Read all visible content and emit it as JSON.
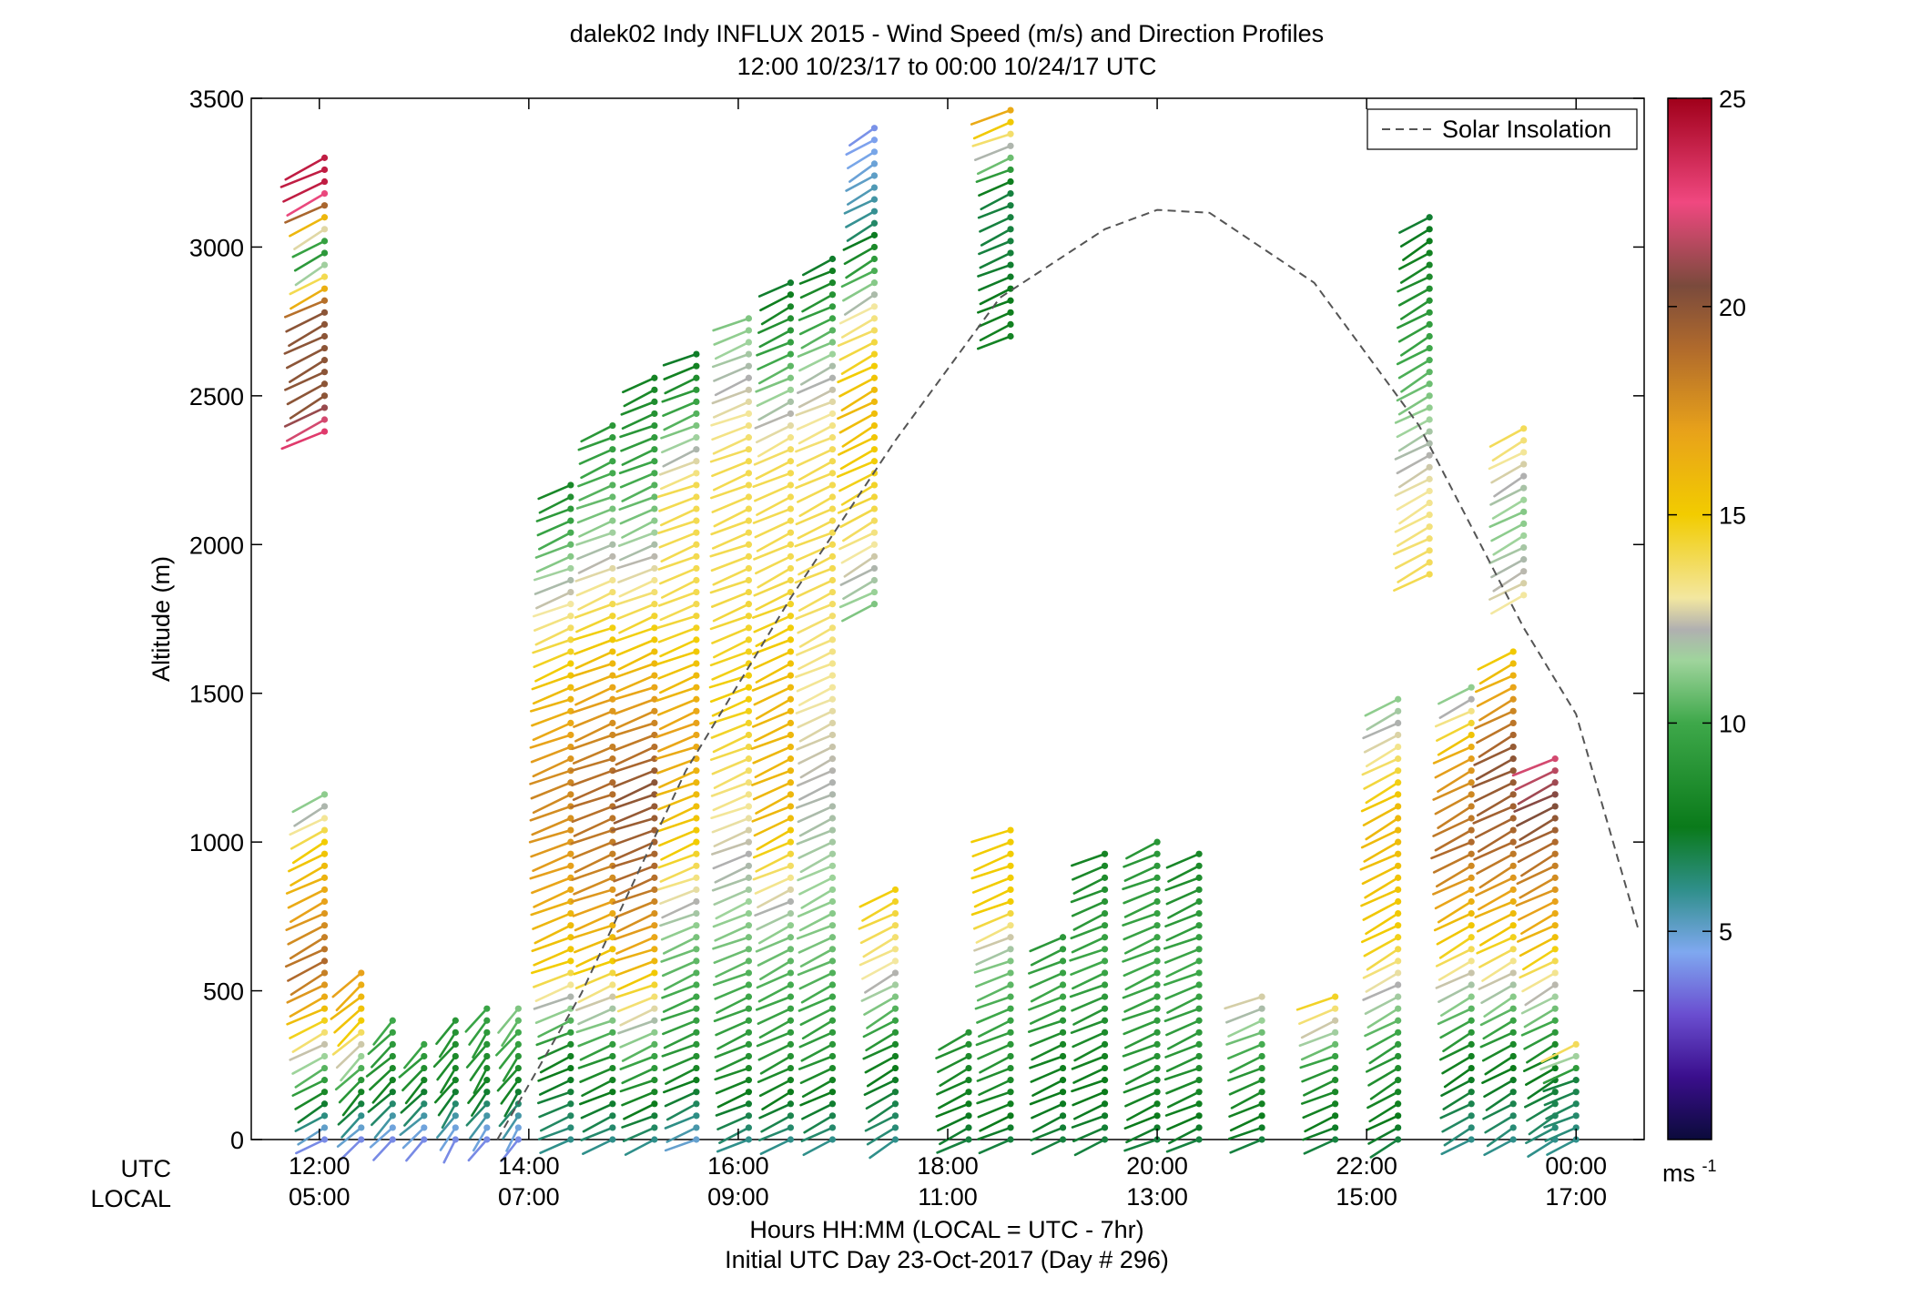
{
  "chart_data": {
    "type": "scatter",
    "subtype": "wind barb profiles",
    "title": "dalek02 Indy INFLUX 2015 - Wind Speed (m/s) and Direction Profiles",
    "subtitle": "12:00 10/23/17 to 00:00 10/24/17  UTC",
    "xlabel": "Hours HH:MM  (LOCAL = UTC - 7hr)",
    "xlabel2": "Initial UTC Day 23-Oct-2017 (Day # 296)",
    "ylabel": "Altitude (m)",
    "xlim": [
      11.35,
      24.65
    ],
    "ylim": [
      0,
      3500
    ],
    "grid": false,
    "utc_row_label": "UTC",
    "local_row_label": "LOCAL",
    "utc_ticks": [
      "12:00",
      "14:00",
      "16:00",
      "18:00",
      "20:00",
      "22:00",
      "00:00"
    ],
    "local_ticks": [
      "05:00",
      "07:00",
      "09:00",
      "11:00",
      "13:00",
      "15:00",
      "17:00"
    ],
    "tick_hours": [
      12,
      14,
      16,
      18,
      20,
      22,
      24
    ],
    "y_ticks": [
      "0",
      "500",
      "1000",
      "1500",
      "2000",
      "2500",
      "3000",
      "3500"
    ],
    "y_tick_values": [
      0,
      500,
      1000,
      1500,
      2000,
      2500,
      3000,
      3500
    ],
    "legend": {
      "label": "Solar Insolation",
      "position": "top-right",
      "style": "dashed"
    },
    "solar_insolation": {
      "hours": [
        13.7,
        14.5,
        15.5,
        16.5,
        17.5,
        18.5,
        19.5,
        20.0,
        20.5,
        21.5,
        22.5,
        23.5,
        24.0,
        24.6
      ],
      "altitude_m": [
        0,
        490,
        1240,
        1820,
        2350,
        2830,
        3060,
        3125,
        3115,
        2880,
        2400,
        1720,
        1430,
        700
      ]
    },
    "colorbar": {
      "range": [
        0,
        25
      ],
      "ticks": [
        "5",
        "10",
        "15",
        "20",
        "25"
      ],
      "tick_values": [
        5,
        10,
        15,
        20,
        25
      ],
      "unit": "ms",
      "unit_exp": "-1"
    },
    "profiles_note": "Each sounding is a vertical column of wind barbs; color = speed (m/s), tail direction = wind direction.",
    "profiles": [
      {
        "hour": 12.05,
        "top": 1170,
        "speeds": [
          [
            0,
            4
          ],
          [
            150,
            8
          ],
          [
            300,
            12
          ],
          [
            450,
            16
          ],
          [
            600,
            19
          ],
          [
            800,
            17
          ],
          [
            1000,
            15
          ],
          [
            1170,
            11
          ]
        ],
        "dir": 300
      },
      {
        "hour": 12.05,
        "top": 3330,
        "bottom": 2380,
        "speeds": [
          [
            2380,
            23
          ],
          [
            2500,
            20
          ],
          [
            2800,
            20
          ],
          [
            3000,
            8
          ],
          [
            3200,
            24
          ],
          [
            3330,
            24
          ]
        ],
        "dir": 300
      },
      {
        "hour": 12.4,
        "top": 560,
        "speeds": [
          [
            0,
            4
          ],
          [
            200,
            9
          ],
          [
            400,
            15
          ],
          [
            560,
            17
          ]
        ],
        "dir": 320
      },
      {
        "hour": 12.7,
        "top": 400,
        "speeds": [
          [
            0,
            4
          ],
          [
            200,
            8
          ],
          [
            400,
            10
          ]
        ],
        "dir": 320
      },
      {
        "hour": 13.0,
        "top": 340,
        "speeds": [
          [
            0,
            4
          ],
          [
            200,
            8
          ],
          [
            340,
            10
          ]
        ],
        "dir": 320
      },
      {
        "hour": 13.3,
        "top": 400,
        "speeds": [
          [
            0,
            4
          ],
          [
            200,
            8
          ],
          [
            400,
            9
          ]
        ],
        "dir": 330
      },
      {
        "hour": 13.6,
        "top": 470,
        "speeds": [
          [
            0,
            4
          ],
          [
            200,
            8
          ],
          [
            470,
            10
          ]
        ],
        "dir": 330
      },
      {
        "hour": 13.9,
        "top": 440,
        "speeds": [
          [
            0,
            4
          ],
          [
            200,
            8
          ],
          [
            440,
            11
          ]
        ],
        "dir": 330
      },
      {
        "hour": 14.4,
        "top": 2220,
        "speeds": [
          [
            0,
            6
          ],
          [
            300,
            8
          ],
          [
            600,
            15
          ],
          [
            900,
            17
          ],
          [
            1200,
            18
          ],
          [
            1500,
            16
          ],
          [
            1800,
            13
          ],
          [
            2220,
            8
          ]
        ],
        "dir": 290
      },
      {
        "hour": 14.8,
        "top": 2410,
        "speeds": [
          [
            0,
            6
          ],
          [
            300,
            9
          ],
          [
            600,
            15
          ],
          [
            900,
            18
          ],
          [
            1200,
            19
          ],
          [
            1500,
            17
          ],
          [
            1800,
            14
          ],
          [
            2100,
            11
          ],
          [
            2410,
            9
          ]
        ],
        "dir": 290
      },
      {
        "hour": 15.2,
        "top": 2560,
        "speeds": [
          [
            0,
            6
          ],
          [
            300,
            10
          ],
          [
            600,
            16
          ],
          [
            900,
            19
          ],
          [
            1200,
            20
          ],
          [
            1500,
            17
          ],
          [
            1800,
            14
          ],
          [
            2100,
            11
          ],
          [
            2560,
            8
          ]
        ],
        "dir": 290
      },
      {
        "hour": 15.6,
        "top": 2660,
        "speeds": [
          [
            0,
            5
          ],
          [
            300,
            9
          ],
          [
            700,
            11
          ],
          [
            1000,
            15
          ],
          [
            1400,
            17
          ],
          [
            1800,
            14
          ],
          [
            2200,
            14
          ],
          [
            2660,
            7
          ]
        ],
        "dir": 290
      },
      {
        "hour": 16.1,
        "top": 2760,
        "speeds": [
          [
            0,
            6
          ],
          [
            300,
            9
          ],
          [
            700,
            11
          ],
          [
            1100,
            13
          ],
          [
            1500,
            15
          ],
          [
            1900,
            14
          ],
          [
            2300,
            14
          ],
          [
            2760,
            11
          ]
        ],
        "dir": 290
      },
      {
        "hour": 16.5,
        "top": 2900,
        "speeds": [
          [
            0,
            6
          ],
          [
            300,
            9
          ],
          [
            700,
            11
          ],
          [
            1100,
            16
          ],
          [
            1500,
            16
          ],
          [
            1900,
            14
          ],
          [
            2300,
            14
          ],
          [
            2900,
            7
          ]
        ],
        "dir": 295
      },
      {
        "hour": 16.9,
        "top": 2980,
        "speeds": [
          [
            0,
            6
          ],
          [
            300,
            9
          ],
          [
            700,
            11
          ],
          [
            1900,
            14
          ],
          [
            2300,
            14
          ],
          [
            2600,
            12
          ],
          [
            2980,
            7
          ]
        ],
        "dir": 295
      },
      {
        "hour": 17.3,
        "top": 3420,
        "bottom": 1800,
        "speeds": [
          [
            1800,
            11
          ],
          [
            2100,
            14
          ],
          [
            2500,
            16
          ],
          [
            2800,
            13
          ],
          [
            3100,
            6
          ],
          [
            3420,
            4
          ]
        ],
        "dir": 300
      },
      {
        "hour": 17.5,
        "top": 860,
        "speeds": [
          [
            0,
            6
          ],
          [
            300,
            8
          ],
          [
            600,
            13
          ],
          [
            860,
            15
          ]
        ],
        "dir": 300
      },
      {
        "hour": 18.2,
        "top": 380,
        "speeds": [
          [
            0,
            7
          ],
          [
            200,
            8
          ],
          [
            380,
            9
          ]
        ],
        "dir": 295
      },
      {
        "hour": 18.6,
        "top": 3470,
        "bottom": 2700,
        "speeds": [
          [
            2700,
            8
          ],
          [
            3000,
            7
          ],
          [
            3200,
            7
          ],
          [
            3470,
            17
          ]
        ],
        "dir": 290
      },
      {
        "hour": 18.6,
        "top": 1050,
        "speeds": [
          [
            0,
            7
          ],
          [
            300,
            9
          ],
          [
            600,
            11
          ],
          [
            800,
            15
          ],
          [
            1050,
            15
          ]
        ],
        "dir": 290
      },
      {
        "hour": 19.1,
        "top": 700,
        "speeds": [
          [
            0,
            7
          ],
          [
            300,
            8
          ],
          [
            500,
            10
          ],
          [
            700,
            9
          ]
        ],
        "dir": 290
      },
      {
        "hour": 19.5,
        "top": 970,
        "speeds": [
          [
            0,
            7
          ],
          [
            300,
            8
          ],
          [
            600,
            10
          ],
          [
            970,
            8
          ]
        ],
        "dir": 290
      },
      {
        "hour": 20.0,
        "top": 1000,
        "speeds": [
          [
            0,
            7
          ],
          [
            300,
            9
          ],
          [
            600,
            10
          ],
          [
            1000,
            9
          ]
        ],
        "dir": 290
      },
      {
        "hour": 20.4,
        "top": 990,
        "speeds": [
          [
            0,
            7
          ],
          [
            300,
            9
          ],
          [
            600,
            10
          ],
          [
            990,
            8
          ]
        ],
        "dir": 290
      },
      {
        "hour": 21.0,
        "top": 500,
        "speeds": [
          [
            0,
            7
          ],
          [
            250,
            9
          ],
          [
            500,
            13
          ]
        ],
        "dir": 290
      },
      {
        "hour": 21.7,
        "top": 500,
        "speeds": [
          [
            0,
            7
          ],
          [
            250,
            9
          ],
          [
            500,
            15
          ]
        ],
        "dir": 290
      },
      {
        "hour": 22.3,
        "top": 1500,
        "speeds": [
          [
            0,
            7
          ],
          [
            300,
            9
          ],
          [
            700,
            15
          ],
          [
            1100,
            16
          ],
          [
            1500,
            11
          ]
        ],
        "dir": 300
      },
      {
        "hour": 22.6,
        "top": 3130,
        "bottom": 1900,
        "speeds": [
          [
            1900,
            14
          ],
          [
            2200,
            13
          ],
          [
            2500,
            11
          ],
          [
            2800,
            9
          ],
          [
            3130,
            7
          ]
        ],
        "dir": 300
      },
      {
        "hour": 23.0,
        "top": 1530,
        "speeds": [
          [
            0,
            6
          ],
          [
            300,
            8
          ],
          [
            700,
            15
          ],
          [
            1000,
            19
          ],
          [
            1300,
            17
          ],
          [
            1530,
            11
          ]
        ],
        "dir": 300
      },
      {
        "hour": 23.4,
        "top": 1650,
        "speeds": [
          [
            0,
            6
          ],
          [
            300,
            8
          ],
          [
            700,
            15
          ],
          [
            1000,
            19
          ],
          [
            1300,
            20
          ],
          [
            1650,
            15
          ]
        ],
        "dir": 300
      },
      {
        "hour": 23.5,
        "top": 2400,
        "bottom": 1830,
        "speeds": [
          [
            1830,
            13
          ],
          [
            2100,
            11
          ],
          [
            2400,
            14
          ]
        ],
        "dir": 300
      },
      {
        "hour": 23.8,
        "top": 1280,
        "speeds": [
          [
            0,
            6
          ],
          [
            300,
            8
          ],
          [
            700,
            16
          ],
          [
            1000,
            19
          ],
          [
            1280,
            22
          ]
        ],
        "dir": 300
      },
      {
        "hour": 24.0,
        "top": 340,
        "speeds": [
          [
            0,
            6
          ],
          [
            200,
            7
          ],
          [
            340,
            15
          ]
        ],
        "dir": 290
      }
    ]
  }
}
